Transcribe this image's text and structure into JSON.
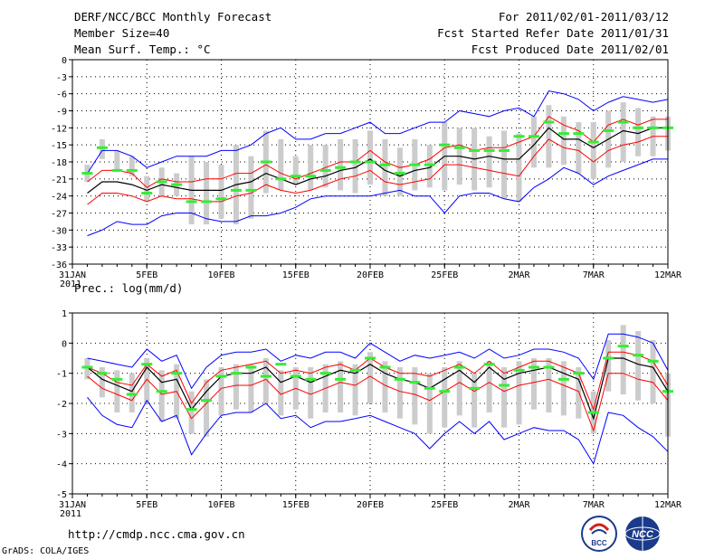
{
  "header": {
    "title": "DERF/NCC/BCC Monthly Forecast",
    "member_size": "Member Size=40",
    "variable_label": "Mean Surf. Temp.: °C",
    "period": "For 2011/02/01-2011/03/12",
    "fcst_started": "Fcst Started Refer Date 2011/01/31",
    "fcst_produced": "Fcst Produced Date 2011/02/01"
  },
  "footer": {
    "url": "http://cmdp.ncc.cma.gov.cn",
    "grads": "GrADS: COLA/IGES",
    "logo_bcc": "BCC",
    "logo_ncc": "NCC"
  },
  "colors": {
    "ensemble_range": "#0000ff",
    "spread": "#ff0000",
    "mean": "#000000",
    "observed": "#33ee33",
    "boxes": "#cccccc"
  },
  "chart_data": [
    {
      "type": "line",
      "title": "Mean Surf. Temp.: °C",
      "xlabel": "",
      "ylabel": "",
      "ylim": [
        -36,
        0
      ],
      "yticks": [
        "0",
        "-3",
        "-6",
        "-9",
        "-12",
        "-15",
        "-18",
        "-21",
        "-24",
        "-27",
        "-30",
        "-33",
        "-36"
      ],
      "xticks": [
        "31JAN",
        "5FEB",
        "10FEB",
        "15FEB",
        "20FEB",
        "25FEB",
        "2MAR",
        "7MAR",
        "12MAR"
      ],
      "xticks_sub": "2011",
      "days": [
        1,
        2,
        3,
        4,
        5,
        6,
        7,
        8,
        9,
        10,
        11,
        12,
        13,
        14,
        15,
        16,
        17,
        18,
        19,
        20,
        21,
        22,
        23,
        24,
        25,
        26,
        27,
        28,
        29,
        30,
        31,
        32,
        33,
        34,
        35,
        36,
        37,
        38,
        39,
        40
      ],
      "series": [
        {
          "name": "max",
          "values": [
            -20,
            -16,
            -16,
            -17,
            -19,
            -18,
            -17,
            -17,
            -17,
            -16,
            -16,
            -15,
            -13,
            -12,
            -14,
            -14,
            -13,
            -13,
            -12,
            -11,
            -13,
            -13,
            -12,
            -11,
            -11,
            -9,
            -9.5,
            -10,
            -9,
            -8.5,
            -10,
            -5.5,
            -6,
            -7,
            -9,
            -7.5,
            -6.5,
            -7,
            -7.5,
            -7
          ]
        },
        {
          "name": "upper",
          "values": [
            -21.5,
            -19.5,
            -19.5,
            -20,
            -22.5,
            -21,
            -21.5,
            -21.5,
            -21,
            -21,
            -20,
            -20,
            -18.5,
            -20,
            -21,
            -20,
            -19,
            -18,
            -18,
            -16,
            -18,
            -19,
            -18.5,
            -17.5,
            -15.5,
            -15,
            -16,
            -15.5,
            -15.5,
            -14.5,
            -13.5,
            -10,
            -11.5,
            -12.5,
            -14.5,
            -11.5,
            -10.5,
            -11.5,
            -10.5,
            -10.5
          ]
        },
        {
          "name": "mean",
          "values": [
            -23.5,
            -21.5,
            -21.5,
            -22,
            -23,
            -22,
            -22.5,
            -23,
            -23,
            -23,
            -22,
            -21.5,
            -20,
            -21,
            -22,
            -21,
            -20.5,
            -19.5,
            -19,
            -17.5,
            -19.5,
            -20.5,
            -19.5,
            -19,
            -17,
            -17,
            -17.5,
            -17,
            -17.5,
            -17.5,
            -15,
            -12,
            -14,
            -14,
            -15.5,
            -14,
            -12.5,
            -13,
            -12,
            -12
          ]
        },
        {
          "name": "lower",
          "values": [
            -25.5,
            -23.5,
            -23.5,
            -24,
            -25,
            -24,
            -24.5,
            -24.5,
            -25,
            -25,
            -24,
            -23.5,
            -22,
            -23,
            -23.5,
            -23,
            -22,
            -21,
            -20.5,
            -19.5,
            -21.5,
            -22,
            -21.5,
            -21,
            -18.5,
            -18.5,
            -19,
            -19.5,
            -20,
            -20.5,
            -17,
            -14,
            -15.5,
            -16,
            -18,
            -16,
            -15,
            -14.5,
            -13.5,
            -13.5
          ]
        },
        {
          "name": "min",
          "values": [
            -31,
            -30,
            -28.5,
            -29,
            -29,
            -27.5,
            -27,
            -27,
            -28,
            -28.5,
            -28.5,
            -27.5,
            -27.5,
            -27,
            -26,
            -24.5,
            -24,
            -24,
            -24,
            -24,
            -23.5,
            -23,
            -24,
            -24,
            -27,
            -24,
            -23.5,
            -23.5,
            -24.5,
            -25,
            -22.5,
            -21,
            -19,
            -20,
            -22,
            -20.5,
            -19.5,
            -18.5,
            -17.5,
            -17.5
          ]
        },
        {
          "name": "observed",
          "values": [
            -20,
            -15.5,
            -19.5,
            -19.5,
            -23.5,
            -21.5,
            -22,
            -25,
            -25,
            -24.5,
            -23,
            -23,
            -18,
            -21,
            -20.5,
            -20.5,
            -19.5,
            -19,
            -18,
            -18,
            -18.5,
            -20,
            -18.5,
            -18.5,
            -15,
            -15.5,
            -16,
            -16,
            -16,
            -13.5,
            -13.5,
            -11,
            -13,
            -13,
            -14.5,
            -12.5,
            -11,
            -12,
            -12,
            -12
          ]
        }
      ],
      "box_ranges": [
        [
          -21.5,
          -18.5
        ],
        [
          -17.5,
          -14
        ],
        [
          -19.5,
          -16
        ],
        [
          -20.5,
          -17
        ],
        [
          -25,
          -20.5
        ],
        [
          -24,
          -19
        ],
        [
          -24,
          -20
        ],
        [
          -29,
          -17
        ],
        [
          -29,
          -18
        ],
        [
          -28,
          -18.5
        ],
        [
          -29,
          -15
        ],
        [
          -28,
          -17
        ],
        [
          -23.5,
          -12.5
        ],
        [
          -23,
          -14
        ],
        [
          -22,
          -17
        ],
        [
          -23,
          -15
        ],
        [
          -22.5,
          -15
        ],
        [
          -23,
          -14
        ],
        [
          -23.5,
          -14
        ],
        [
          -22,
          -12.5
        ],
        [
          -24,
          -14
        ],
        [
          -24,
          -15.5
        ],
        [
          -23,
          -14
        ],
        [
          -22.5,
          -15
        ],
        [
          -23,
          -11
        ],
        [
          -22,
          -12
        ],
        [
          -23,
          -12
        ],
        [
          -22.5,
          -13.5
        ],
        [
          -24.5,
          -12.5
        ],
        [
          -25,
          -13
        ],
        [
          -19,
          -10
        ],
        [
          -19,
          -8
        ],
        [
          -18.5,
          -10
        ],
        [
          -20,
          -11
        ],
        [
          -21,
          -11
        ],
        [
          -19,
          -9
        ],
        [
          -18,
          -7.5
        ],
        [
          -17,
          -8.5
        ],
        [
          -17,
          -10
        ],
        [
          -16,
          -10
        ]
      ]
    },
    {
      "type": "line",
      "title": "Prec.: log(mm/d)",
      "xlabel": "",
      "ylabel": "",
      "ylim": [
        -5,
        1
      ],
      "yticks": [
        "1",
        "0",
        "-1",
        "-2",
        "-3",
        "-4",
        "-5"
      ],
      "xticks": [
        "31JAN",
        "5FEB",
        "10FEB",
        "15FEB",
        "20FEB",
        "25FEB",
        "2MAR",
        "7MAR",
        "12MAR"
      ],
      "xticks_sub": "2011",
      "days": [
        1,
        2,
        3,
        4,
        5,
        6,
        7,
        8,
        9,
        10,
        11,
        12,
        13,
        14,
        15,
        16,
        17,
        18,
        19,
        20,
        21,
        22,
        23,
        24,
        25,
        26,
        27,
        28,
        29,
        30,
        31,
        32,
        33,
        34,
        35,
        36,
        37,
        38,
        39,
        40
      ],
      "series": [
        {
          "name": "max",
          "values": [
            -0.5,
            -0.6,
            -0.7,
            -0.8,
            -0.2,
            -0.6,
            -0.4,
            -1.5,
            -0.8,
            -0.4,
            -0.3,
            -0.3,
            -0.2,
            -0.6,
            -0.4,
            -0.5,
            -0.3,
            -0.3,
            -0.5,
            0,
            -0.3,
            -0.6,
            -0.4,
            -0.5,
            -0.4,
            -0.3,
            -0.5,
            -0.2,
            -0.5,
            -0.4,
            -0.2,
            -0.2,
            -0.3,
            -0.5,
            -1.2,
            0.3,
            0.3,
            0.2,
            0,
            -0.9
          ]
        },
        {
          "name": "upper",
          "values": [
            -0.8,
            -1.0,
            -1.3,
            -1.4,
            -0.7,
            -1.1,
            -0.9,
            -2.0,
            -1.3,
            -0.9,
            -0.8,
            -0.7,
            -0.6,
            -1.0,
            -0.9,
            -1.0,
            -0.8,
            -0.7,
            -0.9,
            -0.5,
            -0.8,
            -1.0,
            -1.0,
            -1.1,
            -0.9,
            -0.7,
            -1.0,
            -0.6,
            -1.0,
            -0.8,
            -0.6,
            -0.6,
            -0.8,
            -1.0,
            -2.2,
            -0.3,
            -0.3,
            -0.4,
            -0.6,
            -1.4
          ]
        },
        {
          "name": "mean",
          "values": [
            -0.8,
            -1.2,
            -1.4,
            -1.6,
            -0.8,
            -1.3,
            -1.2,
            -2.2,
            -1.6,
            -1.1,
            -1.0,
            -1.0,
            -0.8,
            -1.3,
            -1.1,
            -1.3,
            -1.1,
            -0.9,
            -1.0,
            -0.7,
            -1.0,
            -1.2,
            -1.3,
            -1.5,
            -1.2,
            -0.9,
            -1.3,
            -0.8,
            -1.2,
            -1.0,
            -0.9,
            -0.8,
            -1.0,
            -1.2,
            -2.5,
            -0.5,
            -0.5,
            -0.7,
            -0.8,
            -1.6
          ]
        },
        {
          "name": "lower",
          "values": [
            -1.1,
            -1.5,
            -1.7,
            -1.9,
            -1.2,
            -1.7,
            -1.6,
            -2.5,
            -2.0,
            -1.5,
            -1.4,
            -1.4,
            -1.2,
            -1.7,
            -1.5,
            -1.7,
            -1.5,
            -1.3,
            -1.4,
            -1.1,
            -1.4,
            -1.6,
            -1.7,
            -1.9,
            -1.6,
            -1.3,
            -1.6,
            -1.3,
            -1.6,
            -1.4,
            -1.3,
            -1.2,
            -1.4,
            -1.6,
            -2.9,
            -1.0,
            -1.0,
            -1.2,
            -1.3,
            -1.9
          ]
        },
        {
          "name": "min",
          "values": [
            -1.8,
            -2.4,
            -2.7,
            -2.8,
            -1.9,
            -2.6,
            -2.4,
            -3.7,
            -3.0,
            -2.4,
            -2.3,
            -2.3,
            -2.0,
            -2.5,
            -2.4,
            -2.8,
            -2.6,
            -2.6,
            -2.5,
            -2.4,
            -2.6,
            -2.8,
            -3.0,
            -3.5,
            -3.0,
            -2.6,
            -3.0,
            -2.6,
            -3.2,
            -3.0,
            -2.8,
            -2.9,
            -2.9,
            -3.2,
            -4.0,
            -2.3,
            -2.4,
            -2.8,
            -3.1,
            -3.6
          ]
        },
        {
          "name": "observed",
          "values": [
            -0.8,
            -1.0,
            -1.2,
            -1.7,
            -0.7,
            -1.6,
            -1.0,
            -2.2,
            -1.9,
            -1.1,
            -1.0,
            -0.8,
            -1.1,
            -0.7,
            -1.1,
            -1.2,
            -1.0,
            -1.2,
            -0.9,
            -0.5,
            -0.8,
            -1.2,
            -1.3,
            -1.5,
            -1.6,
            -0.8,
            -1.5,
            -0.7,
            -1.4,
            -0.9,
            -0.8,
            -0.8,
            -1.2,
            -1.0,
            -2.3,
            -0.5,
            -0.1,
            -0.4,
            -0.6,
            -1.6
          ]
        }
      ],
      "box_ranges": [
        [
          -1.2,
          -0.5
        ],
        [
          -1.8,
          -0.8
        ],
        [
          -2.3,
          -0.9
        ],
        [
          -2.3,
          -1.0
        ],
        [
          -2.0,
          -0.5
        ],
        [
          -2.6,
          -0.9
        ],
        [
          -2.5,
          -0.7
        ],
        [
          -3.0,
          -1.6
        ],
        [
          -3.1,
          -1.2
        ],
        [
          -2.4,
          -0.8
        ],
        [
          -2.2,
          -0.7
        ],
        [
          -2.3,
          -0.7
        ],
        [
          -2.0,
          -0.5
        ],
        [
          -2.4,
          -0.9
        ],
        [
          -2.2,
          -0.8
        ],
        [
          -2.5,
          -0.8
        ],
        [
          -2.3,
          -0.7
        ],
        [
          -2.3,
          -0.6
        ],
        [
          -2.4,
          -0.7
        ],
        [
          -2.0,
          -0.3
        ],
        [
          -2.3,
          -0.6
        ],
        [
          -2.5,
          -0.8
        ],
        [
          -2.7,
          -0.8
        ],
        [
          -3.0,
          -1.0
        ],
        [
          -2.8,
          -0.8
        ],
        [
          -2.4,
          -0.6
        ],
        [
          -2.8,
          -1.0
        ],
        [
          -2.3,
          -0.6
        ],
        [
          -2.8,
          -0.8
        ],
        [
          -2.7,
          -0.6
        ],
        [
          -2.2,
          -0.5
        ],
        [
          -2.3,
          -0.5
        ],
        [
          -2.4,
          -0.6
        ],
        [
          -2.5,
          -0.8
        ],
        [
          -3.0,
          -1.6
        ],
        [
          -1.6,
          0.1
        ],
        [
          -1.7,
          0.6
        ],
        [
          -1.9,
          0.4
        ],
        [
          -2.0,
          0.1
        ],
        [
          -3.1,
          -1.0
        ]
      ]
    }
  ]
}
